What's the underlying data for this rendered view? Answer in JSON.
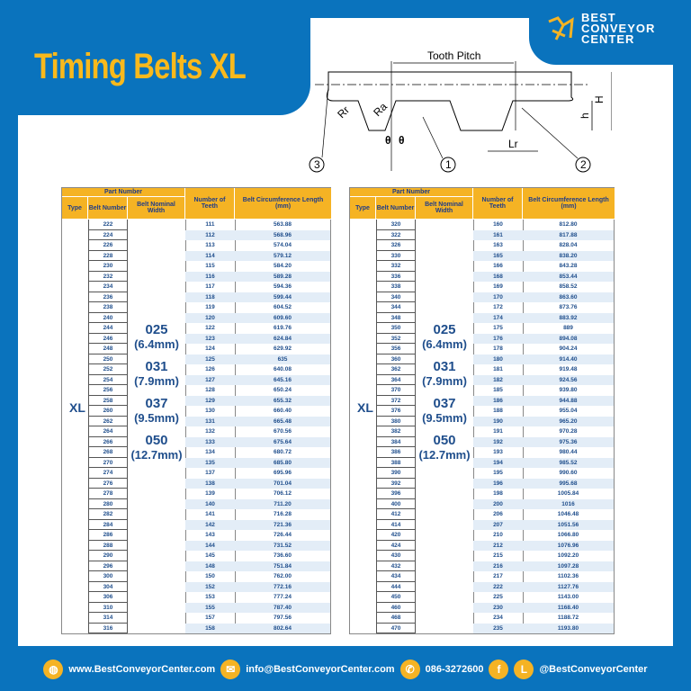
{
  "title": "Timing Belts XL",
  "logo": {
    "line1": "BEST",
    "line2": "CONVEYOR",
    "line3": "CENTER"
  },
  "diagram": {
    "tooth_pitch": "Tooth Pitch",
    "rr": "Rr",
    "ra": "Ra",
    "theta": "θ",
    "lr": "Lr",
    "h_small": "h",
    "h_big": "H",
    "callouts": [
      "1",
      "2",
      "3"
    ]
  },
  "table_headers": {
    "part_number": "Part Number",
    "type": "Type",
    "belt_number": "Belt Number",
    "nominal_width": "Belt Nominal Width",
    "teeth": "Number of Teeth",
    "length": "Belt Circumference Length (mm)"
  },
  "type": "XL",
  "widths": [
    {
      "code": "025",
      "mm": "(6.4mm)"
    },
    {
      "code": "031",
      "mm": "(7.9mm)"
    },
    {
      "code": "037",
      "mm": "(9.5mm)"
    },
    {
      "code": "050",
      "mm": "(12.7mm)"
    }
  ],
  "colors": {
    "brand_blue": "#0a73bd",
    "accent_yellow": "#f5b324"
  },
  "left_rows": [
    [
      "222",
      "111",
      "563.88"
    ],
    [
      "224",
      "112",
      "568.96"
    ],
    [
      "226",
      "113",
      "574.04"
    ],
    [
      "228",
      "114",
      "579.12"
    ],
    [
      "230",
      "115",
      "584.20"
    ],
    [
      "232",
      "116",
      "589.28"
    ],
    [
      "234",
      "117",
      "594.36"
    ],
    [
      "236",
      "118",
      "599.44"
    ],
    [
      "238",
      "119",
      "604.52"
    ],
    [
      "240",
      "120",
      "609.60"
    ],
    [
      "244",
      "122",
      "619.76"
    ],
    [
      "246",
      "123",
      "624.84"
    ],
    [
      "248",
      "124",
      "629.92"
    ],
    [
      "250",
      "125",
      "635"
    ],
    [
      "252",
      "126",
      "640.08"
    ],
    [
      "254",
      "127",
      "645.16"
    ],
    [
      "256",
      "128",
      "650.24"
    ],
    [
      "258",
      "129",
      "655.32"
    ],
    [
      "260",
      "130",
      "660.40"
    ],
    [
      "262",
      "131",
      "665.48"
    ],
    [
      "264",
      "132",
      "670.56"
    ],
    [
      "266",
      "133",
      "675.64"
    ],
    [
      "268",
      "134",
      "680.72"
    ],
    [
      "270",
      "135",
      "685.80"
    ],
    [
      "274",
      "137",
      "695.96"
    ],
    [
      "276",
      "138",
      "701.04"
    ],
    [
      "278",
      "139",
      "706.12"
    ],
    [
      "280",
      "140",
      "711.20"
    ],
    [
      "282",
      "141",
      "716.28"
    ],
    [
      "284",
      "142",
      "721.36"
    ],
    [
      "286",
      "143",
      "726.44"
    ],
    [
      "288",
      "144",
      "731.52"
    ],
    [
      "290",
      "145",
      "736.60"
    ],
    [
      "296",
      "148",
      "751.84"
    ],
    [
      "300",
      "150",
      "762.00"
    ],
    [
      "304",
      "152",
      "772.16"
    ],
    [
      "306",
      "153",
      "777.24"
    ],
    [
      "310",
      "155",
      "787.40"
    ],
    [
      "314",
      "157",
      "797.56"
    ],
    [
      "316",
      "158",
      "802.64"
    ]
  ],
  "right_rows": [
    [
      "320",
      "160",
      "812.80"
    ],
    [
      "322",
      "161",
      "817.88"
    ],
    [
      "326",
      "163",
      "828.04"
    ],
    [
      "330",
      "165",
      "838.20"
    ],
    [
      "332",
      "166",
      "843.28"
    ],
    [
      "336",
      "168",
      "853.44"
    ],
    [
      "338",
      "169",
      "858.52"
    ],
    [
      "340",
      "170",
      "863.60"
    ],
    [
      "344",
      "172",
      "873.76"
    ],
    [
      "348",
      "174",
      "883.92"
    ],
    [
      "350",
      "175",
      "889"
    ],
    [
      "352",
      "176",
      "894.08"
    ],
    [
      "356",
      "178",
      "904.24"
    ],
    [
      "360",
      "180",
      "914.40"
    ],
    [
      "362",
      "181",
      "919.48"
    ],
    [
      "364",
      "182",
      "924.56"
    ],
    [
      "370",
      "185",
      "939.80"
    ],
    [
      "372",
      "186",
      "944.88"
    ],
    [
      "376",
      "188",
      "955.04"
    ],
    [
      "380",
      "190",
      "965.20"
    ],
    [
      "382",
      "191",
      "970.28"
    ],
    [
      "384",
      "192",
      "975.36"
    ],
    [
      "386",
      "193",
      "980.44"
    ],
    [
      "388",
      "194",
      "985.52"
    ],
    [
      "390",
      "195",
      "990.60"
    ],
    [
      "392",
      "196",
      "995.68"
    ],
    [
      "396",
      "198",
      "1005.84"
    ],
    [
      "400",
      "200",
      "1016"
    ],
    [
      "412",
      "206",
      "1046.48"
    ],
    [
      "414",
      "207",
      "1051.56"
    ],
    [
      "420",
      "210",
      "1066.80"
    ],
    [
      "424",
      "212",
      "1076.96"
    ],
    [
      "430",
      "215",
      "1092.20"
    ],
    [
      "432",
      "216",
      "1097.28"
    ],
    [
      "434",
      "217",
      "1102.36"
    ],
    [
      "444",
      "222",
      "1127.76"
    ],
    [
      "450",
      "225",
      "1143.00"
    ],
    [
      "460",
      "230",
      "1168.40"
    ],
    [
      "468",
      "234",
      "1188.72"
    ],
    [
      "470",
      "235",
      "1193.80"
    ]
  ],
  "footer": {
    "website": "www.BestConveyorCenter.com",
    "email": "info@BestConveyorCenter.com",
    "phone": "086-3272600",
    "social": "@BestConveyorCenter",
    "icons": [
      "globe-icon",
      "mail-icon",
      "phone-icon",
      "facebook-icon",
      "line-icon"
    ]
  }
}
